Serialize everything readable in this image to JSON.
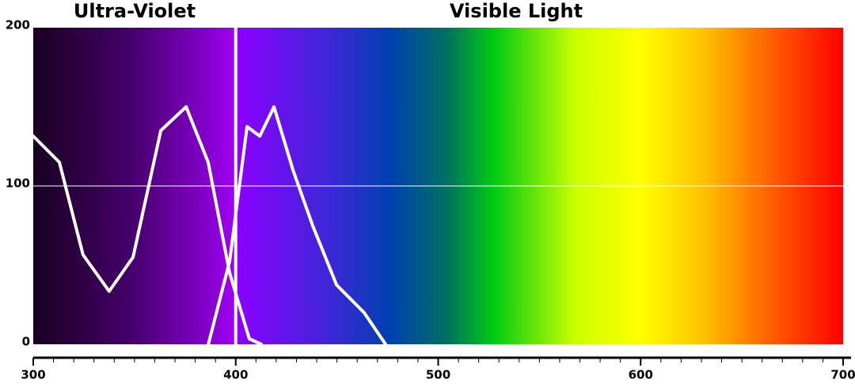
{
  "chart_data": {
    "type": "line",
    "annotations": [
      "Ultra-Violet",
      "Visible Light"
    ],
    "series": [
      {
        "name": null,
        "color": "#ffffff",
        "x": [
          300,
          312.9,
          324.6,
          337.5,
          349.3,
          363,
          375.5,
          386.4,
          397,
          406.7,
          412.6
        ],
        "values": [
          131.5,
          115,
          56.5,
          33.5,
          55,
          135,
          150,
          115,
          45,
          3.5,
          0
        ]
      },
      {
        "name": null,
        "color": "#ffffff",
        "x": [
          386.5,
          397,
          405.6,
          411.9,
          418.9,
          428.3,
          438,
          449.8,
          463.4,
          474
        ],
        "values": [
          0,
          52.5,
          137.5,
          131.5,
          150,
          110,
          75,
          37.5,
          20,
          0
        ]
      }
    ],
    "xlim": [
      300,
      700
    ],
    "ylim": [
      0,
      200
    ],
    "xticks": [
      300,
      400,
      500,
      600,
      700
    ],
    "minor_xticks": [
      310,
      320,
      330,
      340,
      350,
      360,
      370,
      380,
      390,
      410,
      420,
      430,
      440,
      450,
      460,
      470,
      480,
      490,
      510,
      520,
      530,
      540,
      550,
      560,
      570,
      580,
      590,
      610,
      620,
      630,
      640,
      650,
      660,
      670,
      680,
      690
    ],
    "yticks": [
      0,
      100,
      200
    ],
    "grid_y": [
      100
    ],
    "reference_line_x": 400
  }
}
